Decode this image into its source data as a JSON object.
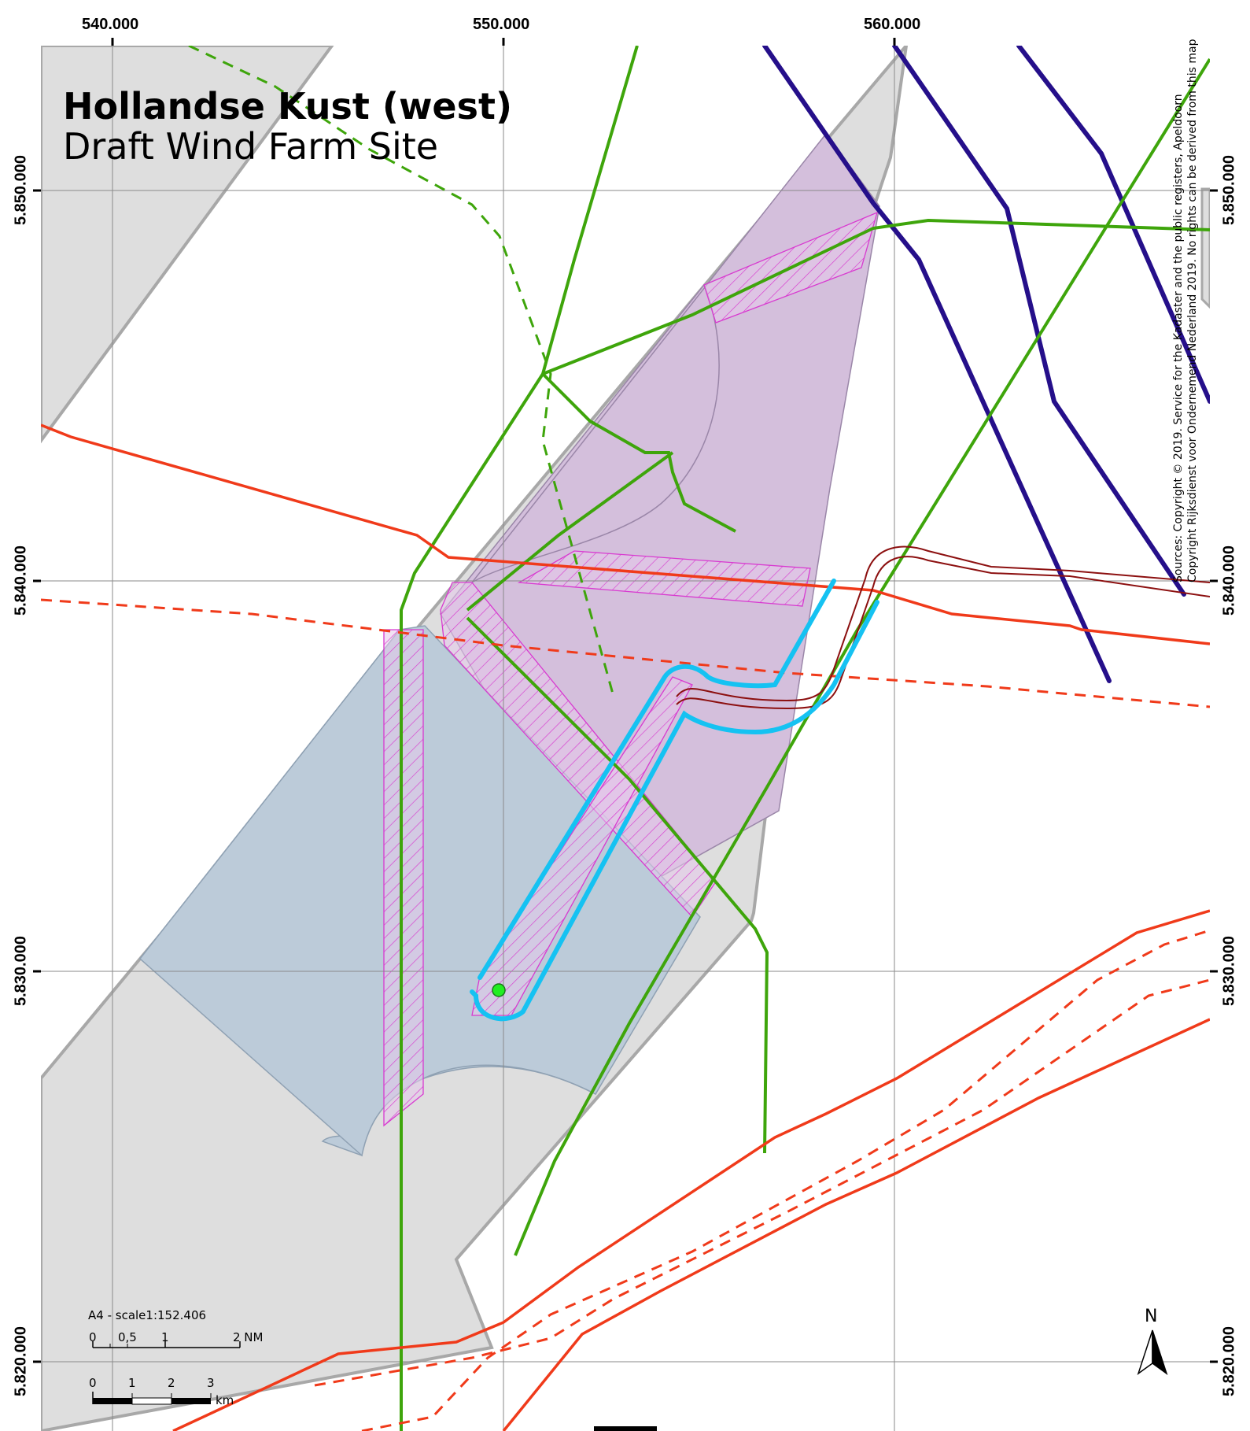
{
  "title": "Hollandse Kust (west)",
  "subtitle": "Draft Wind Farm Site",
  "grid": {
    "x_labels": [
      "540.000",
      "550.000",
      "560.000"
    ],
    "y_labels": [
      "5.850.000",
      "5.840.000",
      "5.830.000",
      "5.820.000"
    ]
  },
  "sources": {
    "line1": "Sources: Copyright © 2019. Service for the Kadaster and the public registers, Apeldoorn",
    "line2": "Copyright Rijksdienst voor Ondernemend Nederland 2019. No rights can be derived from this map"
  },
  "scale": {
    "label": "A4 - scale1:152.406",
    "nm_ticks": [
      "0",
      "0,5",
      "1",
      "2 NM"
    ],
    "km_ticks": [
      "0",
      "1",
      "2",
      "3"
    ],
    "km_unit": "km"
  },
  "north": {
    "label": "N"
  },
  "colors": {
    "gray_area": "#dedede",
    "purple_area": "#d4bfdc",
    "blue_area": "#bccbd9",
    "green_line": "#3ea50b",
    "red_line": "#f03a1a",
    "navy_line": "#250f8a",
    "cyan_line": "#15c2f2",
    "darkred_line": "#8c1010",
    "hatch": "#d83ad0"
  }
}
